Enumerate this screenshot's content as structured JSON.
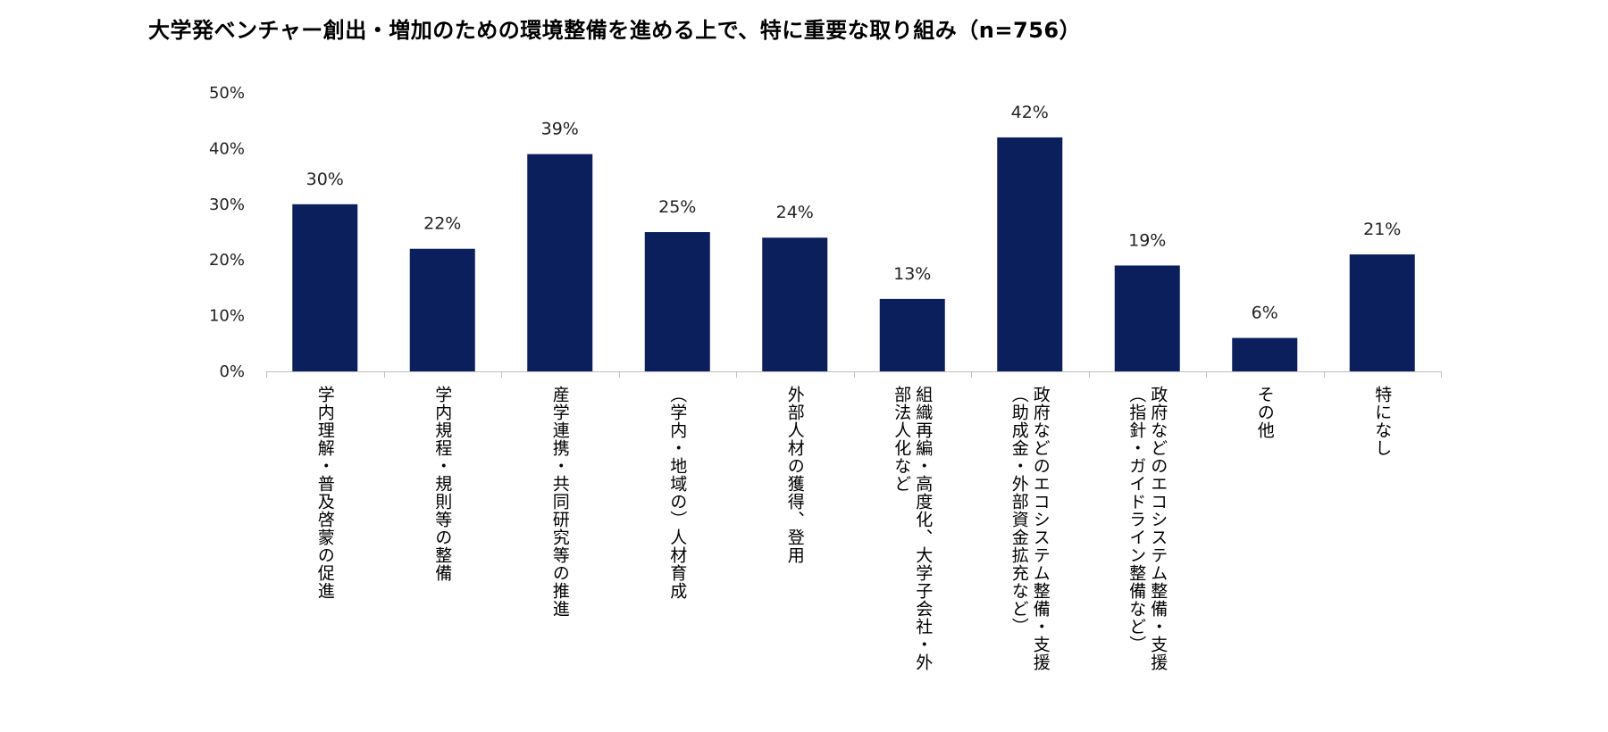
{
  "chart_data": {
    "type": "bar",
    "title": "大学発ベンチャー創出・増加のための環境整備を進める上で、特に重要な取り組み（n=756）",
    "xlabel": "",
    "ylabel": "",
    "ylim": [
      0,
      50
    ],
    "yticks": [
      "0%",
      "10%",
      "20%",
      "30%",
      "40%",
      "50%"
    ],
    "grid": false,
    "bar_color": "#0B1F5C",
    "categories": [
      [
        "学内理解・普及啓蒙の促進"
      ],
      [
        "学内規程・規則等の整備"
      ],
      [
        "産学連携・共同研究等の推進"
      ],
      [
        "（学内・地域の）人材育成"
      ],
      [
        "外部人材の獲得、登用"
      ],
      [
        "組織再編・高度化、大学子会社・外",
        "部法人化など"
      ],
      [
        "政府などのエコシステム整備・支援",
        "（助成金・外部資金拡充など）"
      ],
      [
        "政府などのエコシステム整備・支援",
        "（指針・ガイドライン整備など）"
      ],
      [
        "その他"
      ],
      [
        "特になし"
      ]
    ],
    "values": [
      30,
      22,
      39,
      25,
      24,
      13,
      42,
      19,
      6,
      21
    ],
    "data_labels": [
      "30%",
      "22%",
      "39%",
      "25%",
      "24%",
      "13%",
      "42%",
      "19%",
      "6%",
      "21%"
    ]
  }
}
